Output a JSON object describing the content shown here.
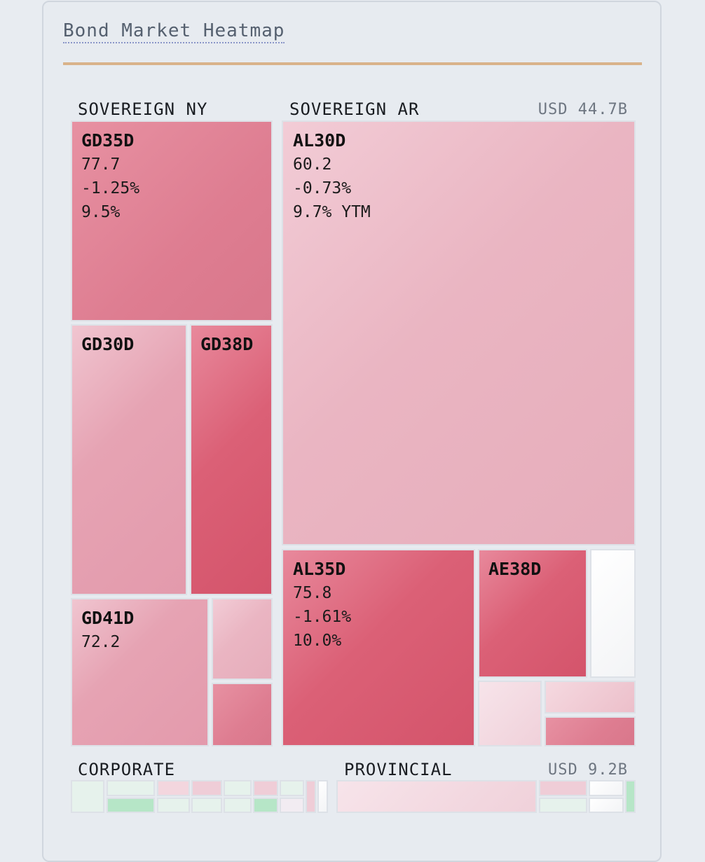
{
  "title": "Bond Market Heatmap",
  "groups": {
    "sovereign_ny": {
      "label": "SOVEREIGN NY"
    },
    "sovereign_ar": {
      "label": "SOVEREIGN AR",
      "total": "USD 44.7B"
    },
    "corporate": {
      "label": "CORPORATE"
    },
    "provincial": {
      "label": "PROVINCIAL",
      "total": "USD 9.2B"
    }
  },
  "tiles": {
    "gd35d": {
      "ticker": "GD35D",
      "price": "77.7",
      "change": "-1.25%",
      "yield": "9.5%"
    },
    "gd30d": {
      "ticker": "GD30D"
    },
    "gd38d": {
      "ticker": "GD38D"
    },
    "gd41d": {
      "ticker": "GD41D",
      "price": "72.2"
    },
    "al30d": {
      "ticker": "AL30D",
      "price": "60.2",
      "change": "-0.73%",
      "yield": "9.7% YTM"
    },
    "al35d": {
      "ticker": "AL35D",
      "price": "75.8",
      "change": "-1.61%",
      "yield": "10.0%"
    },
    "ae38d": {
      "ticker": "AE38D"
    }
  },
  "colors": {
    "accent_rule": "#d9b38a",
    "negative_strong": "#d4546b",
    "negative_light": "#f2ccd6",
    "positive": "#b6e6c7",
    "neutral": "#ffffff"
  }
}
